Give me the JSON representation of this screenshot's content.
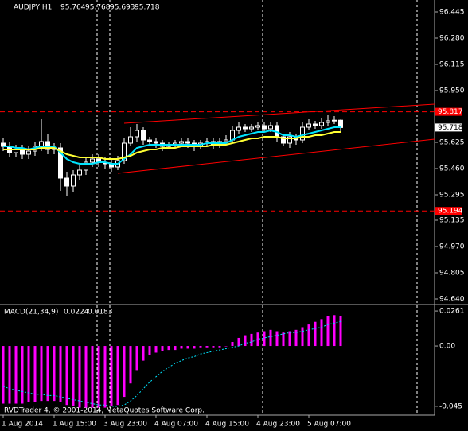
{
  "chart_data": [
    {
      "type": "candlestick",
      "title": "AUDJPY,H1",
      "categories": [
        "1 Aug 2014",
        null,
        null,
        null,
        null,
        null,
        null,
        null,
        "1 Aug 15:00",
        null,
        null,
        null,
        null,
        null,
        null,
        null,
        "3 Aug 23:00",
        null,
        null,
        null,
        null,
        null,
        null,
        null,
        "4 Aug 07:00",
        null,
        null,
        null,
        null,
        null,
        null,
        null,
        "4 Aug 15:00",
        null,
        null,
        null,
        null,
        null,
        null,
        null,
        "4 Aug 23:00",
        null,
        null,
        null,
        null,
        null,
        null,
        null,
        "5 Aug 07:00",
        null,
        null,
        null,
        null,
        null
      ],
      "open": [
        95.62,
        95.6,
        95.56,
        95.58,
        95.55,
        95.57,
        95.6,
        95.63,
        95.58,
        95.59,
        95.4,
        95.35,
        95.42,
        95.45,
        95.5,
        95.52,
        95.5,
        95.49,
        95.47,
        95.51,
        95.62,
        95.66,
        95.7,
        95.64,
        95.63,
        95.62,
        95.6,
        95.61,
        95.62,
        95.63,
        95.62,
        95.6,
        95.62,
        95.63,
        95.61,
        95.63,
        95.64,
        95.7,
        95.72,
        95.71,
        95.72,
        95.73,
        95.71,
        95.73,
        95.66,
        95.62,
        95.66,
        95.64,
        95.72,
        95.74,
        95.73,
        95.75,
        95.76,
        95.764
      ],
      "high": [
        95.65,
        95.63,
        95.61,
        95.61,
        95.6,
        95.63,
        95.77,
        95.68,
        95.62,
        95.62,
        95.44,
        95.45,
        95.48,
        95.53,
        95.55,
        95.55,
        95.53,
        95.52,
        95.54,
        95.65,
        95.72,
        95.74,
        95.72,
        95.66,
        95.65,
        95.64,
        95.63,
        95.64,
        95.65,
        95.65,
        95.64,
        95.64,
        95.65,
        95.65,
        95.65,
        95.67,
        95.73,
        95.75,
        95.74,
        95.74,
        95.75,
        95.75,
        95.75,
        95.75,
        95.68,
        95.69,
        95.68,
        95.75,
        95.77,
        95.76,
        95.78,
        95.8,
        95.79,
        95.768
      ],
      "low": [
        95.57,
        95.53,
        95.53,
        95.52,
        95.52,
        95.54,
        95.57,
        95.55,
        95.55,
        95.32,
        95.29,
        95.31,
        95.39,
        95.42,
        95.47,
        95.47,
        95.46,
        95.44,
        95.45,
        95.49,
        95.6,
        95.63,
        95.61,
        95.6,
        95.59,
        95.57,
        95.58,
        95.59,
        95.6,
        95.59,
        95.57,
        95.58,
        95.6,
        95.58,
        95.59,
        95.61,
        95.62,
        95.68,
        95.69,
        95.69,
        95.7,
        95.69,
        95.69,
        95.63,
        95.6,
        95.59,
        95.61,
        95.62,
        95.7,
        95.71,
        95.71,
        95.73,
        95.74,
        95.693
      ],
      "close": [
        95.6,
        95.56,
        95.58,
        95.55,
        95.57,
        95.6,
        95.63,
        95.58,
        95.59,
        95.4,
        95.35,
        95.42,
        95.45,
        95.5,
        95.52,
        95.5,
        95.49,
        95.47,
        95.51,
        95.62,
        95.66,
        95.7,
        95.64,
        95.63,
        95.62,
        95.6,
        95.61,
        95.62,
        95.63,
        95.62,
        95.6,
        95.62,
        95.63,
        95.61,
        95.63,
        95.64,
        95.7,
        95.72,
        95.71,
        95.72,
        95.73,
        95.71,
        95.73,
        95.66,
        95.62,
        95.66,
        95.64,
        95.72,
        95.74,
        95.73,
        95.75,
        95.76,
        95.764,
        95.718
      ],
      "up_color": "#000000",
      "down_color": "#ffffff",
      "wick_color": "#ffffff",
      "series": [
        {
          "color": "#00e5ff",
          "values": [
            95.6,
            95.6,
            95.59,
            95.59,
            95.58,
            95.59,
            95.6,
            95.6,
            95.6,
            95.56,
            95.52,
            95.5,
            95.49,
            95.49,
            95.49,
            95.5,
            95.5,
            95.49,
            95.49,
            95.52,
            95.55,
            95.59,
            95.6,
            95.61,
            95.61,
            95.61,
            95.61,
            95.61,
            95.61,
            95.61,
            95.61,
            95.61,
            95.62,
            95.62,
            95.62,
            95.62,
            95.64,
            95.66,
            95.67,
            95.68,
            95.69,
            95.69,
            95.7,
            95.69,
            95.67,
            95.67,
            95.66,
            95.67,
            95.68,
            95.69,
            95.7,
            95.71,
            95.72,
            95.72
          ]
        },
        {
          "color": "#ffff33",
          "values": [
            95.58,
            95.58,
            95.58,
            95.58,
            95.58,
            95.58,
            95.59,
            95.59,
            95.59,
            95.57,
            95.55,
            95.54,
            95.53,
            95.53,
            95.53,
            95.53,
            95.52,
            95.52,
            95.52,
            95.53,
            95.54,
            95.56,
            95.57,
            95.58,
            95.58,
            95.59,
            95.59,
            95.59,
            95.6,
            95.6,
            95.6,
            95.6,
            95.6,
            95.61,
            95.61,
            95.61,
            95.62,
            95.63,
            95.64,
            95.65,
            95.65,
            95.66,
            95.66,
            95.66,
            95.65,
            95.65,
            95.65,
            95.66,
            95.66,
            95.67,
            95.67,
            95.68,
            95.69,
            95.69
          ]
        }
      ],
      "levels": [
        95.817,
        95.194
      ],
      "level_color": "#ff0000",
      "trendlines": [
        {
          "x": [
            19,
            67.75
          ],
          "y": [
            95.745,
            95.865
          ]
        },
        {
          "x": [
            18,
            67.75
          ],
          "y": [
            95.43,
            95.645
          ]
        }
      ],
      "ylim": [
        94.61,
        96.52
      ],
      "yticks": [
        96.445,
        {
          "value": 96.28,
          "label": "96.280"
        },
        96.115,
        {
          "value": 95.95,
          "label": "95.950"
        },
        95.625,
        {
          "value": 95.46,
          "label": "95.460"
        },
        95.295,
        95.135,
        {
          "value": 94.97,
          "label": "94.970"
        },
        94.805,
        {
          "value": 94.64,
          "label": "94.640"
        }
      ]
    },
    {
      "type": "macd",
      "title": "MACD(21,34,9)",
      "histogram": {
        "color": "#ff00ff",
        "values": [
          -0.043,
          -0.043,
          -0.043,
          -0.043,
          -0.042,
          -0.042,
          -0.041,
          -0.041,
          -0.041,
          -0.042,
          -0.044,
          -0.045,
          -0.046,
          -0.046,
          -0.046,
          -0.046,
          -0.046,
          -0.045,
          -0.044,
          -0.038,
          -0.028,
          -0.018,
          -0.011,
          -0.007,
          -0.005,
          -0.004,
          -0.003,
          -0.003,
          -0.002,
          -0.002,
          -0.002,
          -0.001,
          -0.001,
          -0.001,
          -0.001,
          0.0,
          0.003,
          0.006,
          0.008,
          0.009,
          0.01,
          0.011,
          0.012,
          0.011,
          0.01,
          0.011,
          0.012,
          0.014,
          0.016,
          0.018,
          0.02,
          0.022,
          0.023,
          0.0224
        ]
      },
      "signal": {
        "color": "#00e5ff",
        "values": [
          -0.03,
          -0.032,
          -0.033,
          -0.034,
          -0.035,
          -0.036,
          -0.036,
          -0.037,
          -0.037,
          -0.038,
          -0.039,
          -0.04,
          -0.041,
          -0.042,
          -0.043,
          -0.044,
          -0.044,
          -0.045,
          -0.045,
          -0.044,
          -0.041,
          -0.037,
          -0.032,
          -0.027,
          -0.023,
          -0.019,
          -0.016,
          -0.013,
          -0.011,
          -0.009,
          -0.008,
          -0.006,
          -0.005,
          -0.004,
          -0.003,
          -0.002,
          -0.001,
          0.0,
          0.002,
          0.003,
          0.005,
          0.006,
          0.007,
          0.008,
          0.009,
          0.01,
          0.01,
          0.011,
          0.012,
          0.013,
          0.014,
          0.016,
          0.017,
          0.0183
        ]
      },
      "ylim": [
        -0.0516,
        0.0303
      ],
      "yticks": [
        0.0261,
        {
          "value": 0,
          "label": "0.00"
        },
        -0.045
      ]
    }
  ],
  "copyright": "RVDTrader 4, © 2001-2014, MetaQuotes Software Corp."
}
